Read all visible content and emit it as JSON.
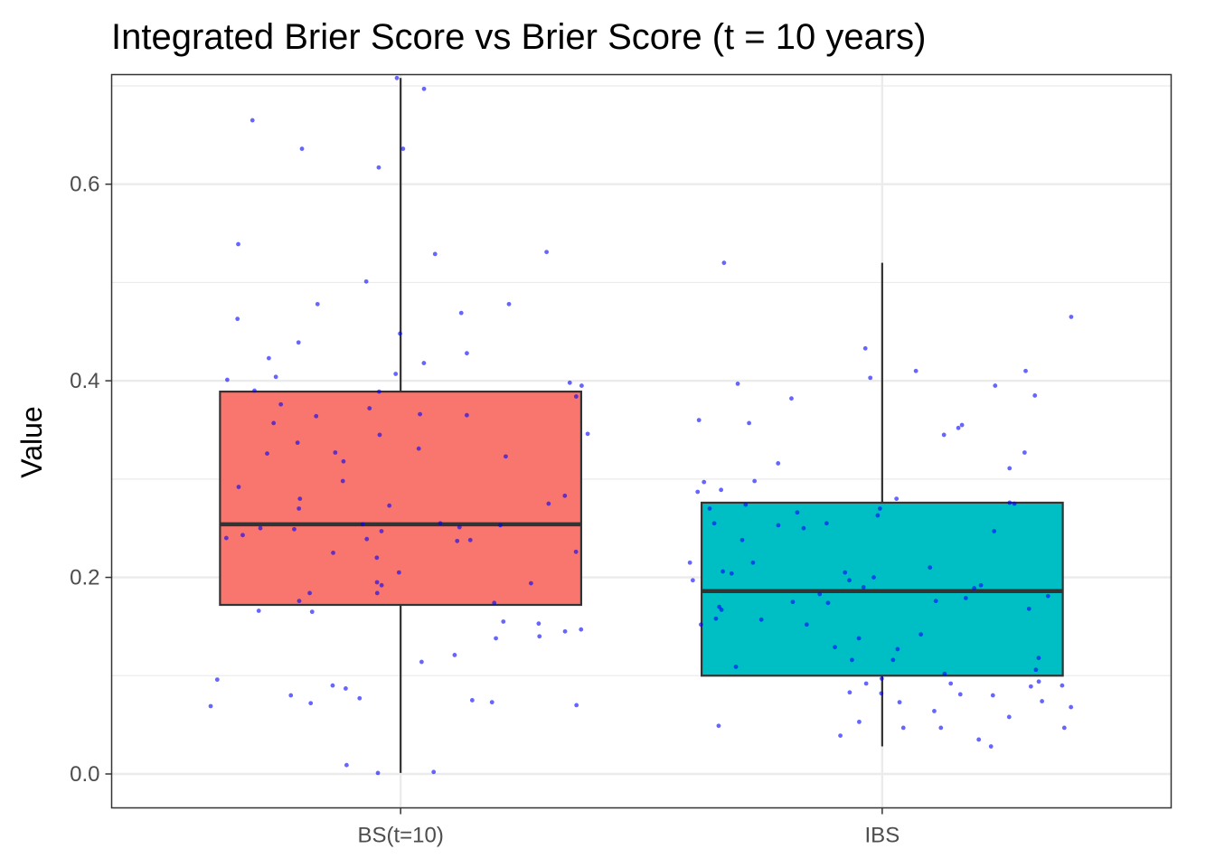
{
  "chart_data": {
    "type": "box",
    "title": "Integrated Brier Score vs Brier Score (t = 10 years)",
    "xlabel": "",
    "ylabel": "Value",
    "ylim": [
      -0.0345,
      0.7115
    ],
    "y_ticks": [
      0.0,
      0.2,
      0.4,
      0.6
    ],
    "y_tick_labels": [
      "0.0",
      "0.2",
      "0.4",
      "0.6"
    ],
    "categories": [
      "BS(t=10)",
      "IBS"
    ],
    "grid": true,
    "legend": "none",
    "jitter_color": "#0000ff",
    "series": [
      {
        "category": "BS(t=10)",
        "fill": "#f8766d",
        "min": 0.001,
        "q1": 0.172,
        "median": 0.254,
        "q3": 0.389,
        "max": 0.708,
        "points": [
          0.708,
          0.697,
          0.665,
          0.636,
          0.617,
          0.636,
          0.539,
          0.531,
          0.529,
          0.501,
          0.478,
          0.478,
          0.469,
          0.463,
          0.448,
          0.439,
          0.428,
          0.423,
          0.418,
          0.407,
          0.404,
          0.401,
          0.398,
          0.395,
          0.39,
          0.389,
          0.384,
          0.376,
          0.372,
          0.366,
          0.365,
          0.364,
          0.357,
          0.346,
          0.345,
          0.337,
          0.331,
          0.327,
          0.326,
          0.323,
          0.318,
          0.298,
          0.292,
          0.283,
          0.28,
          0.275,
          0.273,
          0.27,
          0.255,
          0.254,
          0.253,
          0.251,
          0.25,
          0.249,
          0.247,
          0.243,
          0.24,
          0.239,
          0.238,
          0.237,
          0.226,
          0.225,
          0.22,
          0.205,
          0.195,
          0.194,
          0.192,
          0.184,
          0.184,
          0.176,
          0.174,
          0.166,
          0.165,
          0.155,
          0.153,
          0.147,
          0.145,
          0.14,
          0.138,
          0.121,
          0.114,
          0.096,
          0.09,
          0.087,
          0.08,
          0.077,
          0.075,
          0.073,
          0.072,
          0.07,
          0.069,
          0.009,
          0.002,
          0.001
        ]
      },
      {
        "category": "IBS",
        "fill": "#00bfc4",
        "min": 0.028,
        "q1": 0.1,
        "median": 0.186,
        "q3": 0.276,
        "max": 0.52,
        "points": [
          0.52,
          0.465,
          0.433,
          0.41,
          0.41,
          0.403,
          0.397,
          0.395,
          0.385,
          0.382,
          0.36,
          0.357,
          0.355,
          0.352,
          0.345,
          0.327,
          0.316,
          0.311,
          0.298,
          0.297,
          0.289,
          0.287,
          0.28,
          0.276,
          0.275,
          0.274,
          0.27,
          0.27,
          0.266,
          0.263,
          0.255,
          0.255,
          0.253,
          0.25,
          0.247,
          0.238,
          0.215,
          0.215,
          0.21,
          0.206,
          0.205,
          0.204,
          0.2,
          0.197,
          0.197,
          0.192,
          0.19,
          0.189,
          0.183,
          0.181,
          0.179,
          0.176,
          0.175,
          0.174,
          0.17,
          0.168,
          0.167,
          0.158,
          0.157,
          0.152,
          0.152,
          0.142,
          0.138,
          0.129,
          0.127,
          0.118,
          0.116,
          0.116,
          0.109,
          0.106,
          0.102,
          0.097,
          0.094,
          0.092,
          0.092,
          0.09,
          0.089,
          0.083,
          0.082,
          0.081,
          0.08,
          0.074,
          0.073,
          0.068,
          0.064,
          0.058,
          0.053,
          0.049,
          0.047,
          0.047,
          0.047,
          0.039,
          0.035,
          0.028
        ]
      }
    ]
  }
}
